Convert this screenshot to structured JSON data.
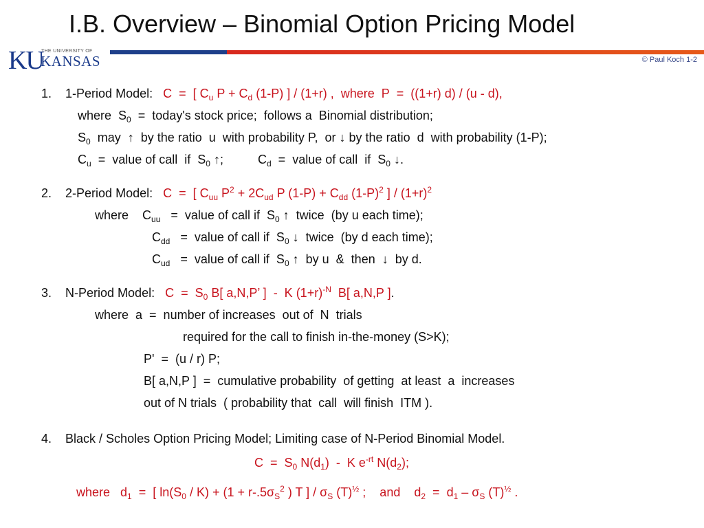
{
  "slide": {
    "title": "I.B.  Overview – Binomial Option Pricing Model",
    "copyright": "© Paul Koch 1-2",
    "logo": {
      "ku": "KU",
      "university": "THE UNIVERSITY OF",
      "kansas": "KANSAS"
    }
  },
  "items": [
    {
      "num": "1.",
      "heading": "1-Period Model:"
    },
    {
      "num": "2.",
      "heading": "2-Period Model:"
    },
    {
      "num": "3.",
      "heading": "N-Period Model:"
    },
    {
      "num": "4.",
      "heading": "Black / Scholes  Option Pricing Model;      Limiting case of  N-Period Binomial Model."
    }
  ],
  "colors": {
    "title": "#111111",
    "formula": "#c8141e",
    "ku_blue": "#1a3a8a",
    "bar_blue": "#1e3f8a",
    "bar_red": "#d8281e"
  }
}
